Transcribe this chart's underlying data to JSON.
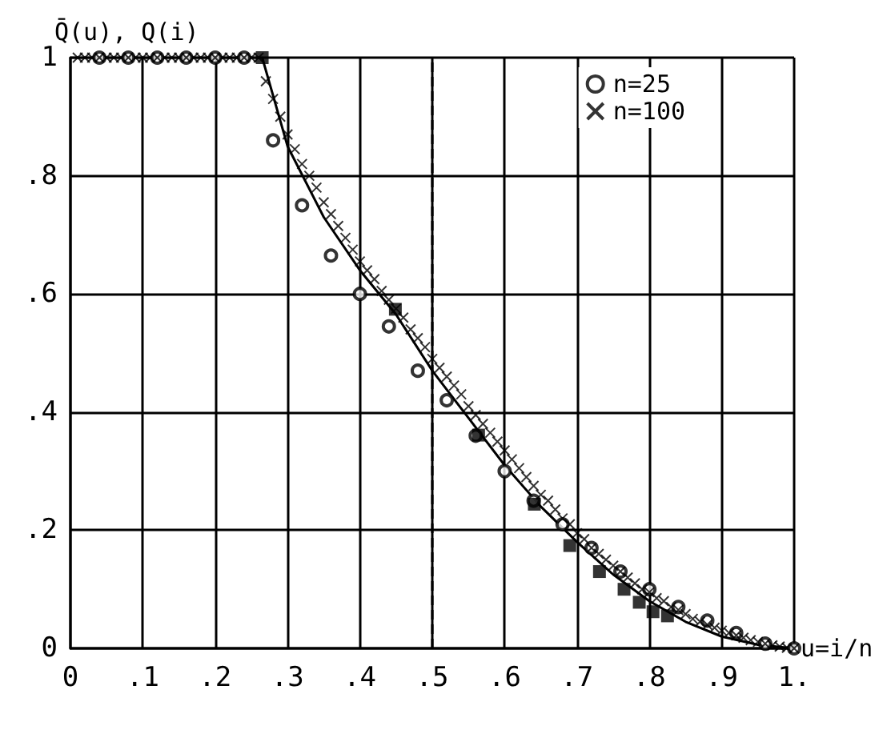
{
  "chart_data": {
    "type": "scatter",
    "ylabel": "Q̄(u), Q(i)",
    "xlabel": "u=i/n",
    "xlim": [
      0,
      1
    ],
    "ylim": [
      0,
      1
    ],
    "xticks": [
      0,
      {
        "value": 0.1,
        "label": ".1"
      },
      {
        "value": 0.2,
        "label": ".2"
      },
      {
        "value": 0.3,
        "label": ".3"
      },
      {
        "value": 0.4,
        "label": ".4"
      },
      {
        "value": 0.5,
        "label": ".5"
      },
      {
        "value": 0.6,
        "label": ".6"
      },
      {
        "value": 0.7,
        "label": ".7"
      },
      {
        "value": 0.8,
        "label": ".8"
      },
      {
        "value": 0.9,
        "label": ".9"
      },
      {
        "value": 1,
        "label": "1."
      }
    ],
    "yticks": [
      0,
      {
        "value": 0.2,
        "label": ".2"
      },
      {
        "value": 0.4,
        "label": ".4"
      },
      {
        "value": 0.6,
        "label": ".6"
      },
      {
        "value": 0.8,
        "label": ".8"
      },
      1
    ],
    "grid": true,
    "legend": "top right",
    "ref_lines": [
      {
        "axis": "x",
        "value": 0.5,
        "line_style": "dashed",
        "color": "#000000"
      }
    ],
    "series": [
      {
        "type": "line",
        "color": "#000000",
        "marker": "none",
        "line_style": "solid",
        "x": [
          0,
          0.265,
          0.3,
          0.35,
          0.4,
          0.45,
          0.5,
          0.55,
          0.6,
          0.65,
          0.7,
          0.75,
          0.8,
          0.85,
          0.9,
          0.95,
          1
        ],
        "values": [
          1,
          1,
          0.85,
          0.73,
          0.64,
          0.565,
          0.47,
          0.39,
          0.31,
          0.24,
          0.18,
          0.125,
          0.08,
          0.045,
          0.02,
          0.006,
          0
        ]
      },
      {
        "name": "n=25",
        "color": "#000000",
        "marker": "circle",
        "x": [
          0.04,
          0.08,
          0.12,
          0.16,
          0.2,
          0.24,
          0.28,
          0.32,
          0.36,
          0.4,
          0.44,
          0.48,
          0.52,
          0.56,
          0.6,
          0.64,
          0.68,
          0.72,
          0.76,
          0.8,
          0.84,
          0.88,
          0.92,
          0.96,
          1
        ],
        "values": [
          1,
          1,
          1,
          1,
          1,
          1,
          0.86,
          0.75,
          0.665,
          0.6,
          0.545,
          0.47,
          0.42,
          0.36,
          0.3,
          0.25,
          0.21,
          0.17,
          0.13,
          0.1,
          0.07,
          0.047,
          0.026,
          0.008,
          0
        ]
      },
      {
        "name": "n=100",
        "color": "#000000",
        "marker": "cross",
        "x": [
          0.01,
          0.02,
          0.03,
          0.04,
          0.05,
          0.06,
          0.07,
          0.08,
          0.09,
          0.1,
          0.11,
          0.12,
          0.13,
          0.14,
          0.15,
          0.16,
          0.17,
          0.18,
          0.19,
          0.2,
          0.21,
          0.22,
          0.23,
          0.24,
          0.25,
          0.26,
          0.27,
          0.28,
          0.29,
          0.3,
          0.31,
          0.32,
          0.33,
          0.34,
          0.35,
          0.36,
          0.37,
          0.38,
          0.39,
          0.4,
          0.41,
          0.42,
          0.43,
          0.44,
          0.45,
          0.46,
          0.47,
          0.48,
          0.49,
          0.5,
          0.51,
          0.52,
          0.53,
          0.54,
          0.55,
          0.56,
          0.57,
          0.58,
          0.59,
          0.6,
          0.61,
          0.62,
          0.63,
          0.64,
          0.65,
          0.66,
          0.67,
          0.68,
          0.69,
          0.7,
          0.71,
          0.72,
          0.73,
          0.74,
          0.75,
          0.76,
          0.77,
          0.78,
          0.79,
          0.8,
          0.81,
          0.82,
          0.83,
          0.84,
          0.85,
          0.86,
          0.87,
          0.88,
          0.89,
          0.9,
          0.91,
          0.92,
          0.93,
          0.94,
          0.95,
          0.96,
          0.97,
          0.98,
          0.99,
          1
        ],
        "values": [
          1,
          1,
          1,
          1,
          1,
          1,
          1,
          1,
          1,
          1,
          1,
          1,
          1,
          1,
          1,
          1,
          1,
          1,
          1,
          1,
          1,
          1,
          1,
          1,
          1,
          1,
          0.96,
          0.93,
          0.9,
          0.87,
          0.845,
          0.82,
          0.8,
          0.78,
          0.755,
          0.735,
          0.715,
          0.695,
          0.675,
          0.655,
          0.64,
          0.625,
          0.605,
          0.59,
          0.575,
          0.56,
          0.54,
          0.525,
          0.51,
          0.49,
          0.475,
          0.46,
          0.445,
          0.43,
          0.41,
          0.395,
          0.38,
          0.365,
          0.35,
          0.335,
          0.32,
          0.305,
          0.29,
          0.275,
          0.26,
          0.25,
          0.235,
          0.22,
          0.21,
          0.195,
          0.185,
          0.17,
          0.16,
          0.15,
          0.14,
          0.13,
          0.12,
          0.11,
          0.1,
          0.095,
          0.085,
          0.08,
          0.07,
          0.065,
          0.058,
          0.05,
          0.045,
          0.04,
          0.035,
          0.03,
          0.026,
          0.022,
          0.018,
          0.014,
          0.011,
          0.008,
          0.005,
          0.003,
          0.001,
          0
        ]
      },
      {
        "color": "#000000",
        "marker": "square",
        "x": [
          0.265,
          0.449,
          0.564,
          0.641,
          0.69,
          0.731,
          0.765,
          0.786,
          0.805,
          0.825
        ],
        "values": [
          1,
          0.574,
          0.361,
          0.244,
          0.174,
          0.13,
          0.1,
          0.078,
          0.062,
          0.055
        ]
      }
    ]
  }
}
